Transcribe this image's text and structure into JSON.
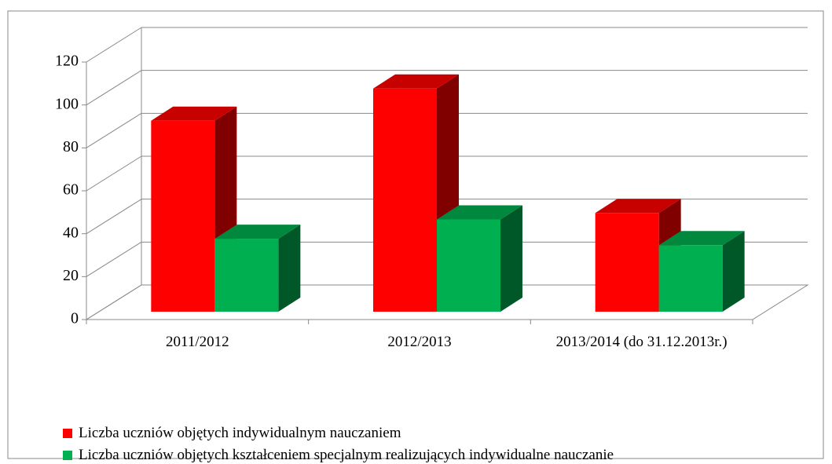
{
  "chart_data": {
    "type": "bar3d",
    "categories": [
      "2011/2012",
      "2012/2013",
      "2013/2014 (do 31.12.2013r.)"
    ],
    "series": [
      {
        "name": "Liczba uczniów objętych indywidualnym nauczaniem",
        "color": "#ff0000",
        "values": [
          89,
          104,
          46
        ]
      },
      {
        "name": "Liczba uczniów objętych kształceniem specjalnym realizujących indywidualne nauczanie",
        "color": "#00b050",
        "values": [
          34,
          43,
          31
        ]
      }
    ],
    "ylim": [
      0,
      120
    ],
    "yticks": [
      0,
      20,
      40,
      60,
      80,
      100,
      120
    ],
    "grid": true,
    "legend": "bottom"
  }
}
